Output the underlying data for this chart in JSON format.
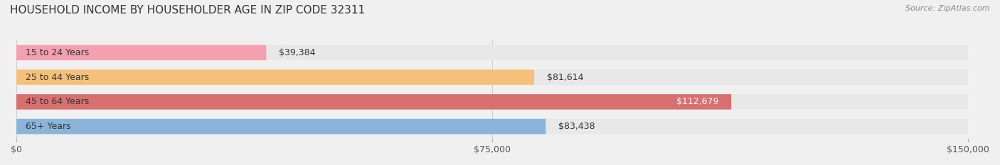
{
  "title": "HOUSEHOLD INCOME BY HOUSEHOLDER AGE IN ZIP CODE 32311",
  "source": "Source: ZipAtlas.com",
  "categories": [
    "15 to 24 Years",
    "25 to 44 Years",
    "45 to 64 Years",
    "65+ Years"
  ],
  "values": [
    39384,
    81614,
    112679,
    83438
  ],
  "bar_colors": [
    "#f4a0b0",
    "#f5c07a",
    "#d97070",
    "#8ab4d9"
  ],
  "bar_edge_colors": [
    "#e08090",
    "#e0a050",
    "#c05050",
    "#6090c0"
  ],
  "label_colors": [
    "#555555",
    "#555555",
    "#ffffff",
    "#555555"
  ],
  "xlim": [
    0,
    150000
  ],
  "xticks": [
    0,
    75000,
    150000
  ],
  "xtick_labels": [
    "$0",
    "$75,000",
    "$150,000"
  ],
  "background_color": "#f0f0f0",
  "bar_bg_color": "#e8e8e8",
  "title_fontsize": 11,
  "source_fontsize": 8,
  "tick_fontsize": 9,
  "label_fontsize": 9,
  "cat_fontsize": 9
}
